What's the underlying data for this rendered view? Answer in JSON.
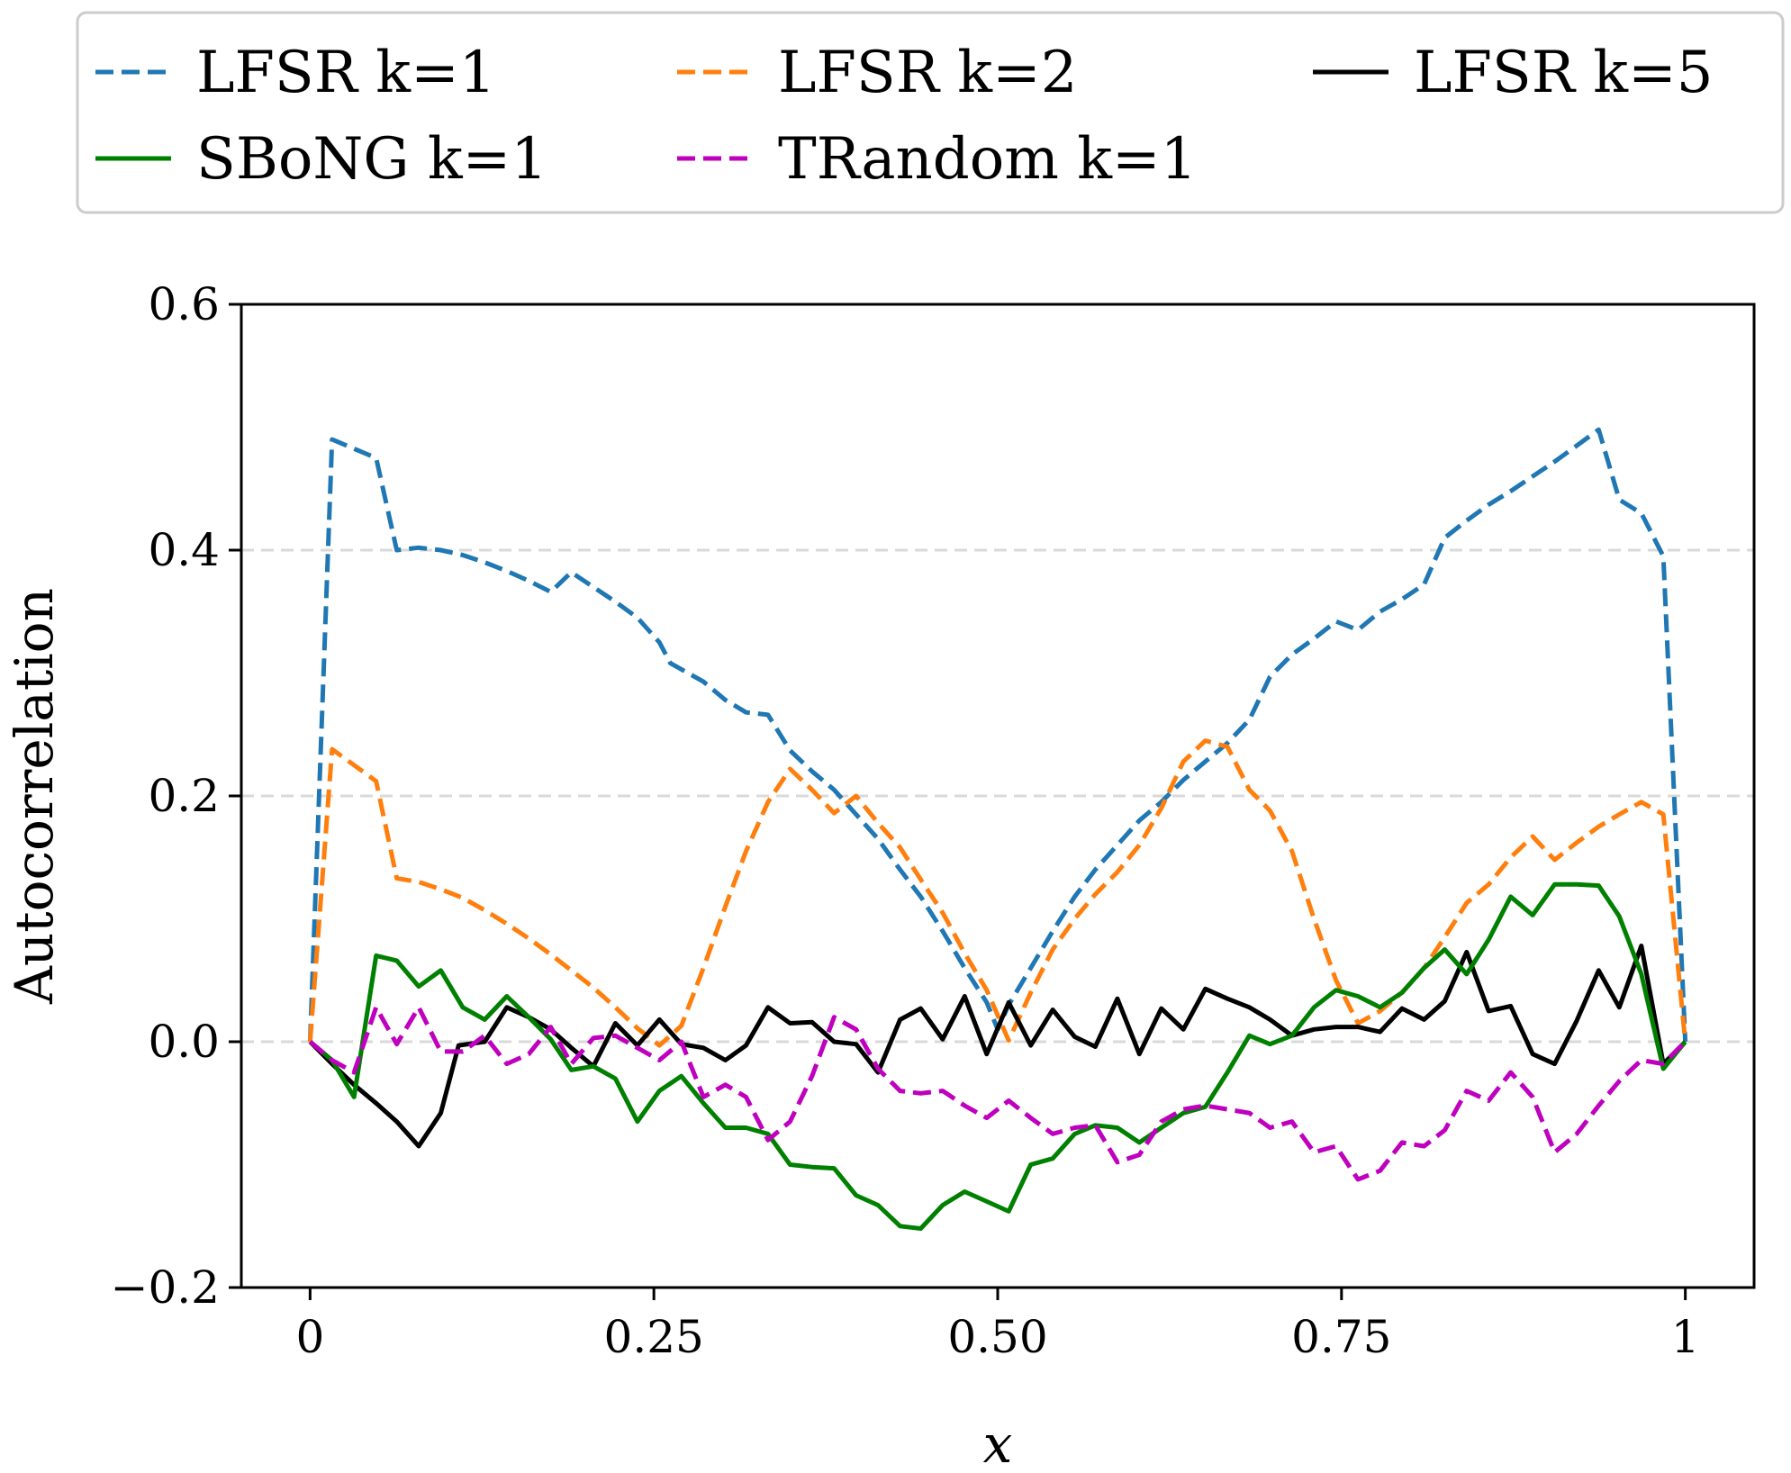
{
  "chart_data": {
    "type": "line",
    "title": "",
    "xlabel": "x",
    "ylabel": "Autocorrelation",
    "xlim": [
      -0.05,
      1.05
    ],
    "ylim": [
      -0.2,
      0.6
    ],
    "xticks": [
      0,
      0.25,
      0.5,
      0.75,
      1
    ],
    "xtick_labels": [
      "0",
      "0.25",
      "0.50",
      "0.75",
      "1"
    ],
    "yticks": [
      -0.2,
      0,
      0.2,
      0.4,
      0.6
    ],
    "ytick_labels": [
      "−0.2",
      "0.0",
      "0.2",
      "0.4",
      "0.6"
    ],
    "grid": "horizontal dashed at 0.0, 0.2, 0.4",
    "legend_position": "top, above plot, 3 columns",
    "series": [
      {
        "name": "LFSR k=1",
        "color": "#1f77b4",
        "dash": "dashed",
        "x": [
          0,
          0.016,
          0.048,
          0.063,
          0.079,
          0.095,
          0.111,
          0.127,
          0.143,
          0.159,
          0.175,
          0.19,
          0.206,
          0.222,
          0.238,
          0.254,
          0.262,
          0.286,
          0.302,
          0.317,
          0.333,
          0.349,
          0.365,
          0.381,
          0.397,
          0.413,
          0.429,
          0.444,
          0.46,
          0.476,
          0.492,
          0.5,
          0.508,
          0.524,
          0.54,
          0.556,
          0.571,
          0.587,
          0.603,
          0.619,
          0.635,
          0.651,
          0.667,
          0.683,
          0.698,
          0.714,
          0.73,
          0.746,
          0.762,
          0.778,
          0.794,
          0.81,
          0.825,
          0.841,
          0.857,
          0.873,
          0.889,
          0.905,
          0.921,
          0.937,
          0.952,
          0.968,
          0.984,
          1.0
        ],
        "values": [
          0.0,
          0.49,
          0.475,
          0.4,
          0.402,
          0.4,
          0.396,
          0.39,
          0.383,
          0.375,
          0.366,
          0.382,
          0.37,
          0.358,
          0.345,
          0.325,
          0.308,
          0.293,
          0.278,
          0.268,
          0.266,
          0.237,
          0.22,
          0.205,
          0.185,
          0.165,
          0.14,
          0.118,
          0.09,
          0.06,
          0.032,
          0.01,
          0.03,
          0.06,
          0.09,
          0.118,
          0.14,
          0.16,
          0.18,
          0.195,
          0.213,
          0.228,
          0.243,
          0.262,
          0.297,
          0.315,
          0.328,
          0.342,
          0.335,
          0.35,
          0.36,
          0.372,
          0.41,
          0.424,
          0.437,
          0.448,
          0.46,
          0.472,
          0.485,
          0.498,
          0.441,
          0.43,
          0.395,
          0.0
        ]
      },
      {
        "name": "LFSR k=2",
        "color": "#ff7f0e",
        "dash": "dashed",
        "x": [
          0,
          0.016,
          0.048,
          0.063,
          0.079,
          0.095,
          0.111,
          0.127,
          0.143,
          0.159,
          0.175,
          0.19,
          0.206,
          0.222,
          0.238,
          0.254,
          0.27,
          0.286,
          0.302,
          0.317,
          0.333,
          0.349,
          0.365,
          0.381,
          0.397,
          0.413,
          0.429,
          0.444,
          0.46,
          0.476,
          0.492,
          0.508,
          0.524,
          0.54,
          0.556,
          0.571,
          0.587,
          0.603,
          0.619,
          0.635,
          0.651,
          0.667,
          0.683,
          0.698,
          0.714,
          0.73,
          0.746,
          0.762,
          0.778,
          0.794,
          0.81,
          0.825,
          0.841,
          0.857,
          0.873,
          0.889,
          0.905,
          0.921,
          0.937,
          0.952,
          0.968,
          0.984,
          1.0
        ],
        "values": [
          0.0,
          0.238,
          0.212,
          0.133,
          0.13,
          0.124,
          0.117,
          0.107,
          0.096,
          0.084,
          0.071,
          0.058,
          0.044,
          0.028,
          0.011,
          -0.003,
          0.013,
          0.06,
          0.11,
          0.155,
          0.195,
          0.222,
          0.205,
          0.186,
          0.2,
          0.178,
          0.158,
          0.132,
          0.105,
          0.072,
          0.042,
          0.001,
          0.04,
          0.075,
          0.1,
          0.12,
          0.138,
          0.16,
          0.19,
          0.228,
          0.245,
          0.24,
          0.205,
          0.188,
          0.155,
          0.1,
          0.05,
          0.015,
          0.025,
          0.04,
          0.06,
          0.085,
          0.113,
          0.128,
          0.15,
          0.167,
          0.148,
          0.162,
          0.175,
          0.185,
          0.195,
          0.185,
          0.0
        ]
      },
      {
        "name": "LFSR k=5",
        "color": "#000000",
        "dash": "solid",
        "x": [
          0,
          0.016,
          0.032,
          0.048,
          0.063,
          0.079,
          0.095,
          0.108,
          0.127,
          0.143,
          0.159,
          0.175,
          0.19,
          0.206,
          0.222,
          0.238,
          0.254,
          0.27,
          0.286,
          0.302,
          0.317,
          0.333,
          0.349,
          0.365,
          0.381,
          0.397,
          0.413,
          0.429,
          0.444,
          0.46,
          0.476,
          0.492,
          0.508,
          0.524,
          0.54,
          0.556,
          0.571,
          0.587,
          0.603,
          0.619,
          0.635,
          0.651,
          0.667,
          0.683,
          0.698,
          0.714,
          0.73,
          0.746,
          0.762,
          0.778,
          0.794,
          0.81,
          0.825,
          0.841,
          0.857,
          0.873,
          0.889,
          0.905,
          0.921,
          0.937,
          0.952,
          0.968,
          0.984,
          1.0
        ],
        "values": [
          0.0,
          -0.018,
          -0.035,
          -0.05,
          -0.065,
          -0.085,
          -0.058,
          -0.003,
          0.0,
          0.028,
          0.02,
          0.01,
          -0.005,
          -0.02,
          0.015,
          -0.003,
          0.018,
          -0.002,
          -0.005,
          -0.015,
          -0.003,
          0.028,
          0.015,
          0.016,
          0.0,
          -0.002,
          -0.025,
          0.018,
          0.027,
          0.002,
          0.037,
          -0.01,
          0.032,
          -0.003,
          0.026,
          0.004,
          -0.004,
          0.035,
          -0.01,
          0.027,
          0.01,
          0.043,
          0.035,
          0.028,
          0.018,
          0.005,
          0.01,
          0.012,
          0.012,
          0.008,
          0.027,
          0.018,
          0.033,
          0.073,
          0.025,
          0.029,
          -0.01,
          -0.018,
          0.017,
          0.058,
          0.028,
          0.078,
          -0.018,
          0.0
        ]
      },
      {
        "name": "SBoNG k=1",
        "color": "#008000",
        "dash": "solid",
        "x": [
          0,
          0.016,
          0.032,
          0.048,
          0.063,
          0.079,
          0.095,
          0.111,
          0.127,
          0.143,
          0.159,
          0.175,
          0.19,
          0.206,
          0.222,
          0.238,
          0.254,
          0.27,
          0.286,
          0.302,
          0.317,
          0.333,
          0.349,
          0.365,
          0.381,
          0.397,
          0.413,
          0.429,
          0.444,
          0.46,
          0.476,
          0.492,
          0.508,
          0.524,
          0.54,
          0.556,
          0.571,
          0.587,
          0.603,
          0.619,
          0.635,
          0.651,
          0.667,
          0.683,
          0.698,
          0.714,
          0.73,
          0.746,
          0.762,
          0.778,
          0.794,
          0.81,
          0.825,
          0.841,
          0.857,
          0.873,
          0.889,
          0.905,
          0.921,
          0.937,
          0.952,
          0.968,
          0.984,
          1.0
        ],
        "values": [
          0.0,
          -0.015,
          -0.045,
          0.07,
          0.066,
          0.045,
          0.058,
          0.028,
          0.018,
          0.037,
          0.02,
          0.002,
          -0.023,
          -0.02,
          -0.03,
          -0.065,
          -0.04,
          -0.028,
          -0.05,
          -0.07,
          -0.07,
          -0.075,
          -0.1,
          -0.102,
          -0.103,
          -0.125,
          -0.133,
          -0.15,
          -0.152,
          -0.133,
          -0.122,
          -0.13,
          -0.138,
          -0.1,
          -0.095,
          -0.075,
          -0.068,
          -0.07,
          -0.082,
          -0.07,
          -0.058,
          -0.053,
          -0.025,
          0.005,
          -0.002,
          0.005,
          0.028,
          0.042,
          0.037,
          0.028,
          0.04,
          0.06,
          0.075,
          0.055,
          0.083,
          0.118,
          0.103,
          0.128,
          0.128,
          0.127,
          0.102,
          0.055,
          -0.022,
          0.0
        ]
      },
      {
        "name": "TRandom k=1",
        "color": "#bf00bf",
        "dash": "dashed",
        "x": [
          0,
          0.016,
          0.032,
          0.048,
          0.063,
          0.079,
          0.095,
          0.111,
          0.127,
          0.143,
          0.159,
          0.175,
          0.19,
          0.206,
          0.222,
          0.238,
          0.254,
          0.27,
          0.286,
          0.302,
          0.317,
          0.333,
          0.349,
          0.365,
          0.381,
          0.397,
          0.413,
          0.429,
          0.444,
          0.46,
          0.476,
          0.492,
          0.508,
          0.524,
          0.54,
          0.556,
          0.571,
          0.587,
          0.603,
          0.619,
          0.635,
          0.651,
          0.667,
          0.683,
          0.698,
          0.714,
          0.73,
          0.746,
          0.762,
          0.778,
          0.794,
          0.81,
          0.825,
          0.841,
          0.857,
          0.873,
          0.889,
          0.905,
          0.921,
          0.937,
          0.952,
          0.968,
          0.984,
          1.0
        ],
        "values": [
          0.0,
          -0.015,
          -0.025,
          0.028,
          -0.002,
          0.028,
          -0.008,
          -0.008,
          0.005,
          -0.018,
          -0.01,
          0.012,
          -0.018,
          0.003,
          0.005,
          -0.005,
          -0.015,
          0.0,
          -0.045,
          -0.035,
          -0.045,
          -0.08,
          -0.065,
          -0.028,
          0.02,
          0.01,
          -0.022,
          -0.04,
          -0.042,
          -0.04,
          -0.052,
          -0.062,
          -0.048,
          -0.062,
          -0.075,
          -0.07,
          -0.068,
          -0.098,
          -0.092,
          -0.065,
          -0.055,
          -0.052,
          -0.055,
          -0.058,
          -0.07,
          -0.065,
          -0.09,
          -0.085,
          -0.112,
          -0.105,
          -0.082,
          -0.085,
          -0.072,
          -0.04,
          -0.048,
          -0.025,
          -0.045,
          -0.09,
          -0.075,
          -0.052,
          -0.032,
          -0.015,
          -0.018,
          0.0
        ]
      }
    ]
  }
}
